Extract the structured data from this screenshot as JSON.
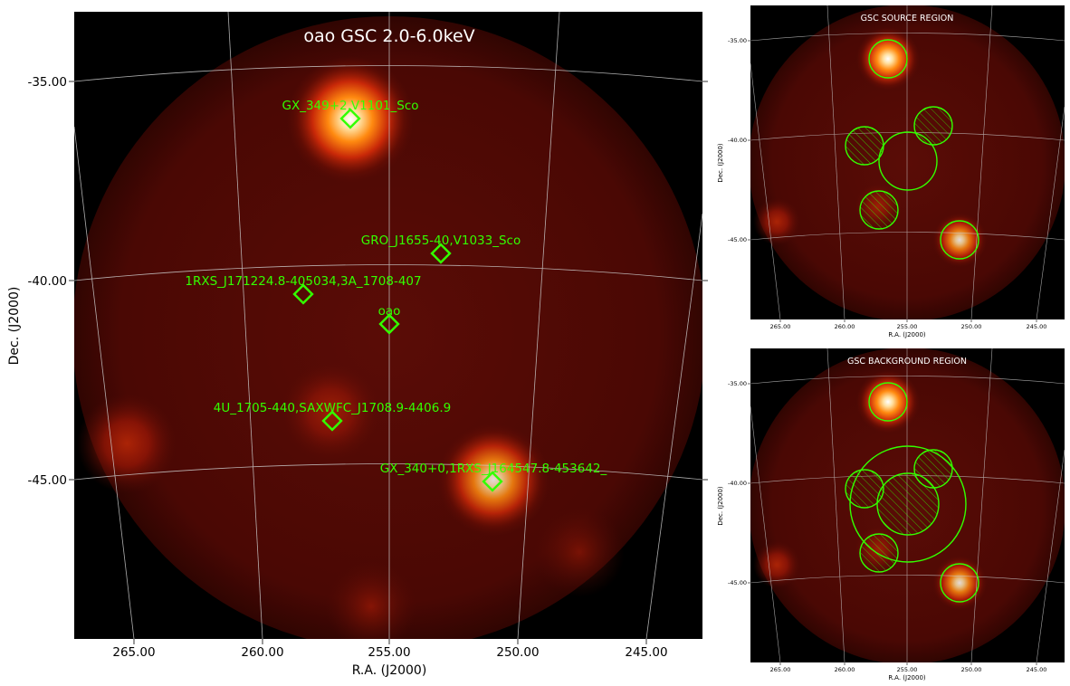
{
  "main_panel": {
    "title": "oao GSC 2.0-6.0keV",
    "xlabel": "R.A. (J2000)",
    "ylabel": "Dec. (J2000)",
    "xticks": [
      "265.00",
      "260.00",
      "255.00",
      "250.00",
      "245.00"
    ],
    "yticks": [
      "-35.00",
      "-40.00",
      "-45.00"
    ],
    "sources": [
      {
        "label": "GX_349+2,V1101_Sco"
      },
      {
        "label": "GRO_J1655-40,V1033_Sco"
      },
      {
        "label": "1RXS_J171224.8-405034,3A_1708-407"
      },
      {
        "label": "oao"
      },
      {
        "label": "4U_1705-440,SAXWFC_J1708.9-4406.9"
      },
      {
        "label": "GX_340+0,1RXS_J164547.8-453642_"
      }
    ]
  },
  "source_panel": {
    "title": "GSC SOURCE REGION",
    "xlabel": "R.A. (J2000)",
    "ylabel": "Dec. (J2000)",
    "xticks": [
      "265.00",
      "260.00",
      "255.00",
      "250.00",
      "245.00"
    ],
    "yticks": [
      "-35.00",
      "-40.00",
      "-45.00"
    ]
  },
  "background_panel": {
    "title": "GSC BACKGROUND REGION",
    "xlabel": "R.A. (J2000)",
    "ylabel": "Dec. (J2000)",
    "xticks": [
      "265.00",
      "260.00",
      "255.00",
      "250.00",
      "245.00"
    ],
    "yticks": [
      "-35.00",
      "-40.00",
      "-45.00"
    ]
  },
  "colors": {
    "marker": "#33ff00",
    "grid": "#cccccc",
    "background": "#000000",
    "glow": "#ffffff"
  }
}
